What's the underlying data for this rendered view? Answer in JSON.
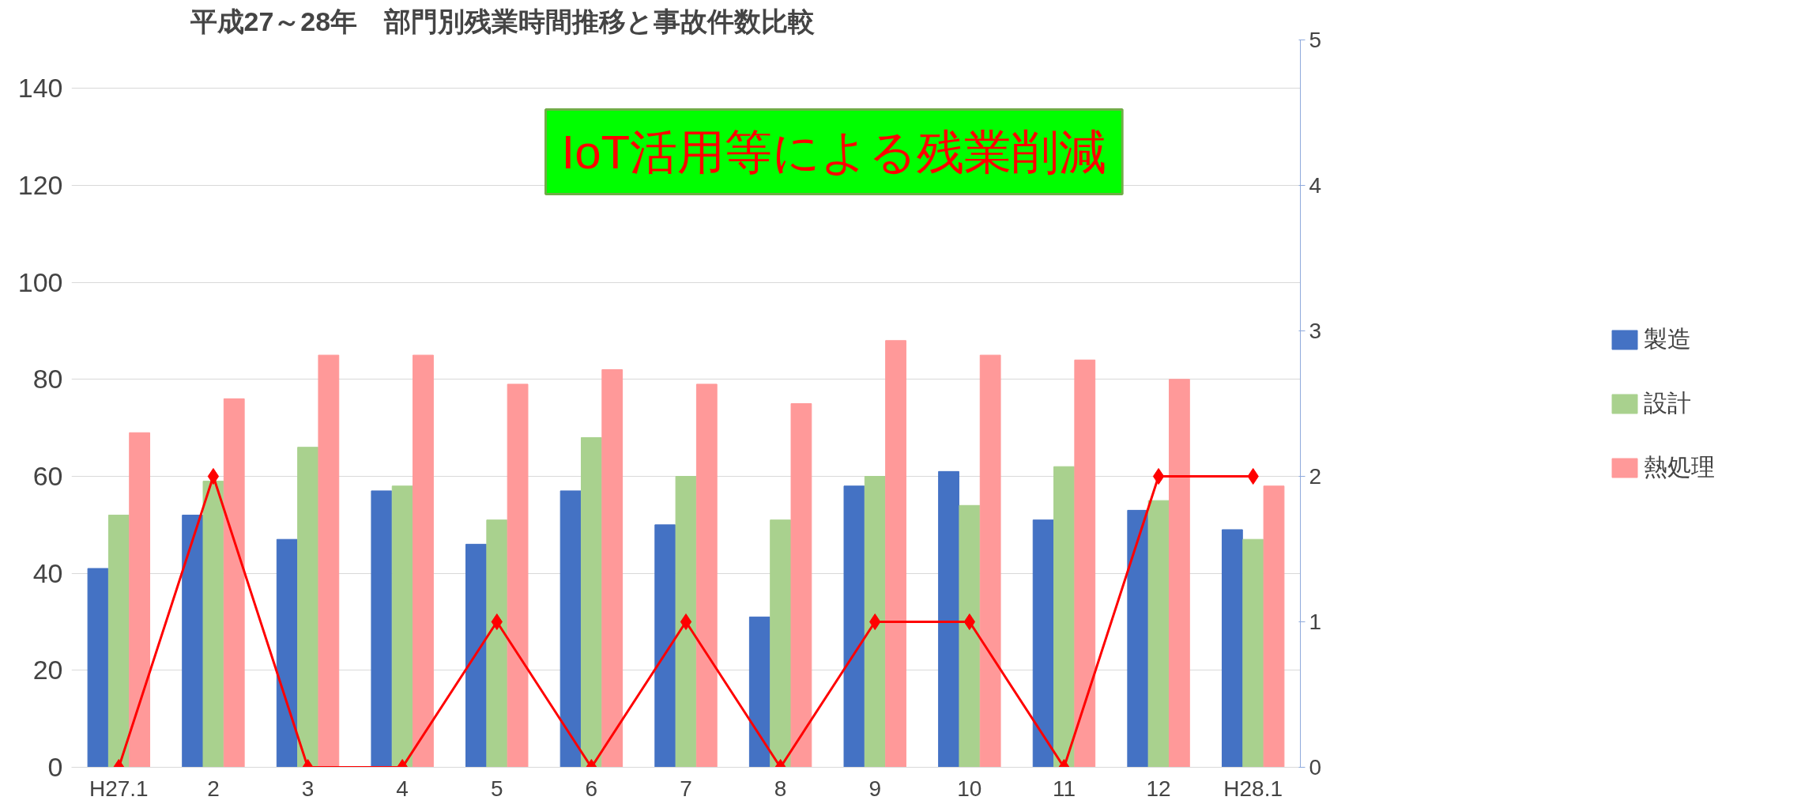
{
  "chart_data": {
    "type": "bar",
    "title": "平成27～28年　部門別残業時間推移と事故件数比較",
    "categories": [
      "H27.1",
      "2",
      "3",
      "4",
      "5",
      "6",
      "7",
      "8",
      "9",
      "10",
      "11",
      "12",
      "H28.1"
    ],
    "series": [
      {
        "name": "製造",
        "color": "#4472c4",
        "values": [
          41,
          52,
          47,
          57,
          46,
          57,
          50,
          31,
          58,
          61,
          51,
          53,
          49
        ]
      },
      {
        "name": "設計",
        "color": "#a9d18e",
        "values": [
          52,
          59,
          66,
          58,
          51,
          68,
          60,
          51,
          60,
          54,
          62,
          55,
          47
        ]
      },
      {
        "name": "熱処理",
        "color": "#ff9999",
        "values": [
          69,
          76,
          85,
          85,
          79,
          82,
          79,
          75,
          88,
          85,
          84,
          80,
          58
        ]
      },
      {
        "type": "line",
        "axis": "y2",
        "color": "#ff0000",
        "values": [
          0,
          2,
          0,
          0,
          1,
          0,
          1,
          0,
          1,
          1,
          0,
          2,
          2
        ]
      }
    ],
    "ylim": [
      0,
      150
    ],
    "yticks": [
      0,
      20,
      40,
      60,
      80,
      100,
      120,
      140
    ],
    "y2lim": [
      0,
      5
    ],
    "y2ticks": [
      0,
      1,
      2,
      3,
      4,
      5
    ],
    "annotations": [
      "IoT活用等による残業削減"
    ],
    "grid": "y",
    "legend": "right",
    "marker": "diamond",
    "line_style": "solid"
  }
}
